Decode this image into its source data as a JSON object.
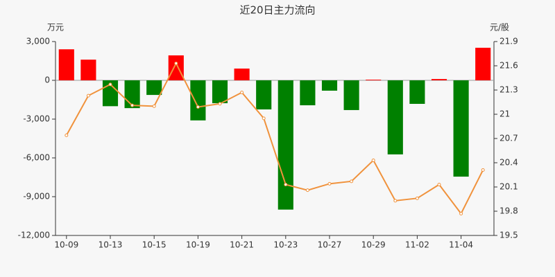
{
  "chart_data": {
    "type": "combo",
    "title": "近20日主力流向",
    "y_unit": "万元",
    "y2_unit": "元/股",
    "categories": [
      "10-09",
      null,
      "10-13",
      null,
      "10-15",
      null,
      "10-19",
      null,
      "10-21",
      null,
      "10-23",
      null,
      "10-27",
      null,
      "10-29",
      null,
      "11-02",
      null,
      "11-04",
      null
    ],
    "series": [
      {
        "type": "bar",
        "positive_color": "#ff0000",
        "negative_color": "#008000",
        "values": [
          2400,
          1600,
          -2000,
          -2150,
          -1130,
          1930,
          -3100,
          -1770,
          910,
          -2250,
          -10000,
          -1930,
          -800,
          -2300,
          50,
          -5730,
          -1820,
          100,
          -7450,
          2520
        ]
      },
      {
        "type": "line",
        "axis": "y2",
        "color": "#f0923c",
        "values": [
          20.74,
          21.23,
          21.37,
          21.11,
          21.1,
          21.63,
          21.09,
          21.13,
          21.27,
          20.95,
          20.13,
          20.06,
          20.14,
          20.17,
          20.43,
          19.93,
          19.96,
          20.13,
          19.77,
          20.31
        ]
      }
    ],
    "ylim": [
      -12000,
      3000
    ],
    "yticks": [
      {
        "value": 3000,
        "label": "3,000"
      },
      0,
      {
        "value": -3000,
        "label": "-3,000"
      },
      {
        "value": -6000,
        "label": "-6,000"
      },
      {
        "value": -9000,
        "label": "-9,000"
      },
      {
        "value": -12000,
        "label": "-12,000"
      }
    ],
    "y2lim": [
      19.5,
      21.9
    ],
    "y2ticks": [
      21.9,
      21.6,
      21.3,
      21,
      20.7,
      20.4,
      20.1,
      19.8,
      19.5
    ]
  }
}
